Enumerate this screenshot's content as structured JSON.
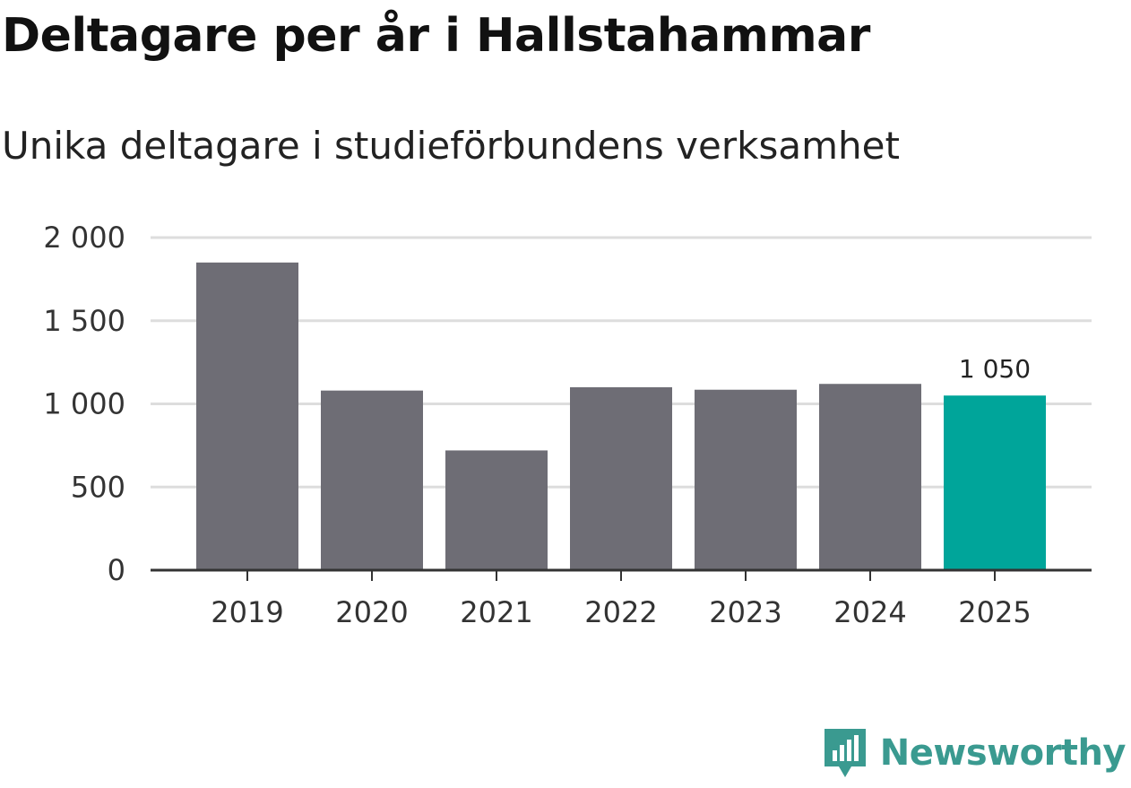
{
  "chart_data": {
    "type": "bar",
    "title": "Deltagare per år i Hallstahammar",
    "subtitle": "Unika deltagare i studieförbundens verksamhet",
    "categories": [
      "2019",
      "2020",
      "2021",
      "2022",
      "2023",
      "2024",
      "2025"
    ],
    "values": [
      1850,
      1080,
      720,
      1100,
      1085,
      1120,
      1050
    ],
    "y_ticks": [
      0,
      500,
      1000,
      1500,
      2000
    ],
    "y_tick_labels": [
      "0",
      "500",
      "1 000",
      "1 500",
      "2 000"
    ],
    "ylim": [
      0,
      2000
    ],
    "highlight_index": 6,
    "highlight_label": "1 050",
    "bar_color": "#6e6d75",
    "highlight_color": "#00a59a",
    "grid_color": "#dddddd",
    "axis_color": "#333333",
    "xlabel": "",
    "ylabel": ""
  },
  "branding": {
    "name": "Newsworthy",
    "color": "#3a9a90"
  }
}
